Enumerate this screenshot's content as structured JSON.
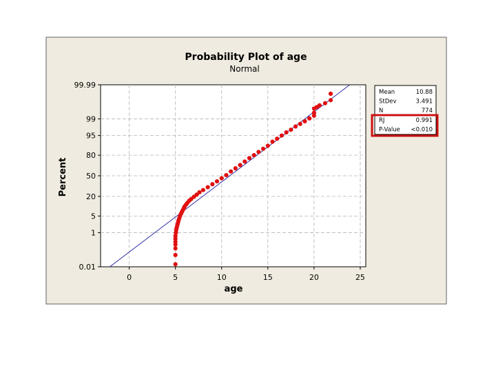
{
  "chart_data": {
    "type": "scatter",
    "title": "Probability Plot of age",
    "subtitle": "Normal",
    "xlabel": "age",
    "ylabel": "Percent",
    "xlim": [
      -3.1,
      25.6
    ],
    "x_ticks": [
      0,
      5,
      10,
      15,
      20,
      25
    ],
    "y_scale": "normal-probability",
    "y_ticks": [
      0.01,
      1,
      5,
      20,
      50,
      80,
      95,
      99,
      99.99
    ],
    "y_tick_labels": [
      "0.01",
      "1",
      "5",
      "20",
      "50",
      "80",
      "95",
      "99",
      "99.99"
    ],
    "grid": true,
    "fit_line": {
      "mean": 10.88,
      "stdev": 3.491
    },
    "series": [
      {
        "color": "#e01010",
        "x": [
          5.0,
          5.0,
          5.0,
          5.0,
          5.0,
          5.0,
          5.0,
          5.05,
          5.08,
          5.12,
          5.18,
          5.25,
          5.3,
          5.35,
          5.42,
          5.5,
          5.6,
          5.7,
          5.8,
          5.9,
          6.0,
          6.15,
          6.3,
          6.5,
          6.7,
          7.0,
          7.3,
          7.6,
          8.0,
          8.5,
          9.0,
          9.5,
          10.0,
          10.5,
          11.0,
          11.5,
          12.0,
          12.5,
          13.0,
          13.5,
          14.0,
          14.5,
          15.0,
          15.5,
          16.0,
          16.5,
          17.0,
          17.5,
          18.0,
          18.5,
          19.0,
          19.5,
          20.0,
          20.0,
          20.0,
          20.3,
          20.6,
          21.2,
          21.8,
          21.8
        ],
        "y": [
          0.015,
          0.06,
          0.15,
          0.25,
          0.35,
          0.5,
          0.7,
          1.0,
          1.3,
          1.6,
          2.0,
          2.5,
          3.0,
          3.5,
          4.2,
          5.0,
          6.0,
          7.0,
          8.0,
          9.2,
          10.5,
          12.0,
          13.5,
          15.5,
          17.0,
          19.5,
          22.0,
          25.0,
          28.0,
          32.0,
          36.5,
          41.0,
          46.0,
          51.0,
          57.0,
          62.0,
          67.0,
          72.0,
          76.5,
          80.0,
          83.5,
          86.5,
          89.0,
          91.8,
          93.5,
          95.0,
          96.2,
          97.0,
          97.8,
          98.3,
          98.7,
          99.05,
          99.3,
          99.5,
          99.7,
          99.75,
          99.8,
          99.85,
          99.9,
          99.96
        ]
      }
    ],
    "stats_table": [
      {
        "label": "Mean",
        "value": "10.88"
      },
      {
        "label": "StDev",
        "value": "3.491"
      },
      {
        "label": "N",
        "value": "774"
      },
      {
        "label": "RJ",
        "value": "0.991"
      },
      {
        "label": "P-Value",
        "value": "<0.010"
      }
    ]
  },
  "colors": {
    "panel_bg": "#f0ebe0",
    "panel_border": "#606060",
    "plot_bg": "#ffffff",
    "grid": "#b4b4b4",
    "fit_line": "#1c1ca0",
    "points": "#e01010",
    "highlight_box": "#cc1111"
  }
}
